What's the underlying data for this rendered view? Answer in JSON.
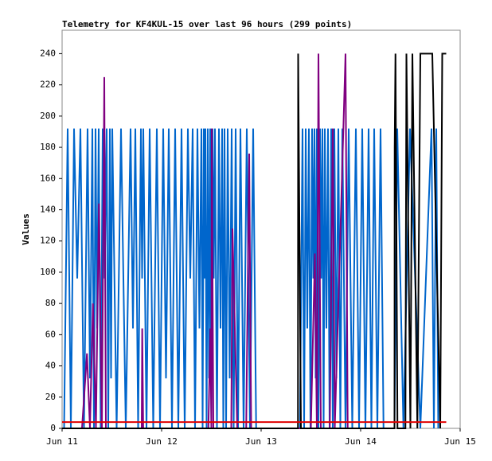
{
  "chart_data": {
    "type": "line",
    "title": "Telemetry for KF4KUL-15 over last 96 hours (299 points)",
    "y_label": "Values",
    "xlim": [
      0,
      4
    ],
    "xticks": [
      {
        "value": 0,
        "label": "Jun 11"
      },
      {
        "value": 1,
        "label": "Jun 12"
      },
      {
        "value": 2,
        "label": "Jun 13"
      },
      {
        "value": 3,
        "label": "Jun 14"
      },
      {
        "value": 4,
        "label": "Jun 15"
      }
    ],
    "ylim": [
      0,
      255
    ],
    "yticks": [
      0,
      20,
      40,
      60,
      80,
      100,
      120,
      140,
      160,
      180,
      200,
      220,
      240
    ],
    "grid": false,
    "series": [
      {
        "color": "#0066cc",
        "x": [
          0.02,
          0.056,
          0.088,
          0.12,
          0.152,
          0.184,
          0.22,
          0.256,
          0.28,
          0.304,
          0.32,
          0.336,
          0.352,
          0.368,
          0.388,
          0.408,
          0.428,
          0.448,
          0.464,
          0.48,
          0.492,
          0.504,
          0.548,
          0.592,
          0.64,
          0.688,
          0.712,
          0.736,
          0.764,
          0.792,
          0.804,
          0.816,
          0.848,
          0.88,
          0.916,
          0.952,
          0.984,
          1.016,
          1.044,
          1.072,
          1.104,
          1.136,
          1.168,
          1.2,
          1.232,
          1.264,
          1.288,
          1.312,
          1.336,
          1.36,
          1.38,
          1.4,
          1.412,
          1.424,
          1.432,
          1.44,
          1.452,
          1.464,
          1.476,
          1.488,
          1.5,
          1.512,
          1.524,
          1.536,
          1.556,
          1.576,
          1.592,
          1.608,
          1.62,
          1.632,
          1.648,
          1.664,
          1.684,
          1.704,
          1.724,
          1.744,
          1.768,
          1.792,
          1.824,
          1.856,
          1.888,
          1.92,
          1.95,
          2.39,
          2.416,
          2.432,
          2.448,
          2.464,
          2.48,
          2.496,
          2.512,
          2.524,
          2.536,
          2.548,
          2.56,
          2.576,
          2.592,
          2.604,
          2.616,
          2.628,
          2.64,
          2.656,
          2.672,
          2.688,
          2.704,
          2.72,
          2.736,
          2.756,
          2.776,
          2.796,
          2.816,
          2.848,
          2.88,
          2.916,
          2.952,
          2.984,
          3.016,
          3.048,
          3.08,
          3.108,
          3.136,
          3.168,
          3.2,
          3.23,
          3.34,
          3.368,
          3.43,
          3.496,
          3.6,
          3.712,
          3.736,
          3.76,
          3.78
        ],
        "values": [
          0,
          192,
          0,
          192,
          96,
          192,
          0,
          192,
          32,
          192,
          0,
          192,
          64,
          192,
          0,
          192,
          96,
          192,
          0,
          192,
          32,
          192,
          0,
          192,
          0,
          192,
          64,
          192,
          0,
          192,
          96,
          192,
          0,
          192,
          0,
          192,
          0,
          192,
          32,
          192,
          0,
          192,
          0,
          192,
          0,
          192,
          96,
          192,
          0,
          192,
          64,
          192,
          0,
          192,
          96,
          192,
          0,
          192,
          32,
          192,
          0,
          192,
          96,
          192,
          0,
          192,
          64,
          192,
          0,
          192,
          0,
          192,
          32,
          192,
          0,
          192,
          0,
          192,
          0,
          192,
          0,
          192,
          0,
          0,
          192,
          0,
          192,
          64,
          192,
          0,
          192,
          96,
          192,
          32,
          192,
          0,
          192,
          96,
          192,
          0,
          192,
          64,
          192,
          0,
          192,
          0,
          192,
          32,
          192,
          0,
          192,
          0,
          192,
          0,
          192,
          0,
          192,
          0,
          192,
          0,
          192,
          0,
          192,
          0,
          0,
          192,
          0,
          192,
          0,
          192,
          0,
          192,
          0
        ]
      },
      {
        "color": "#800080",
        "x": [
          0.2,
          0.25,
          0.28,
          0.31,
          0.34,
          0.37,
          0.4,
          0.424,
          0.44,
          0.8,
          0.805,
          0.815,
          1.47,
          1.49,
          1.5,
          1.504,
          1.52,
          1.7,
          1.712,
          1.76,
          1.85,
          1.88,
          1.9,
          2.5,
          2.54,
          2.56,
          2.576,
          2.6,
          2.69,
          2.72,
          2.74,
          2.848,
          2.87
        ],
        "values": [
          0,
          48,
          0,
          80,
          0,
          144,
          0,
          225,
          0,
          0,
          64,
          0,
          0,
          64,
          0,
          192,
          0,
          0,
          128,
          0,
          0,
          176,
          0,
          0,
          112,
          0,
          240,
          0,
          0,
          192,
          0,
          240,
          0
        ]
      },
      {
        "color": "#000000",
        "x": [
          0,
          2.37,
          2.372,
          2.4,
          3.34,
          3.342,
          3.35,
          3.37,
          3.45,
          3.46,
          3.5,
          3.52,
          3.57,
          3.6,
          3.72,
          3.8,
          3.82,
          3.86
        ],
        "values": [
          0,
          0,
          240,
          0,
          0,
          180,
          240,
          0,
          0,
          240,
          0,
          240,
          0,
          240,
          240,
          0,
          240,
          240
        ]
      },
      {
        "color": "#e00000",
        "x": [
          0,
          3.86
        ],
        "values": [
          4,
          4
        ]
      }
    ]
  }
}
